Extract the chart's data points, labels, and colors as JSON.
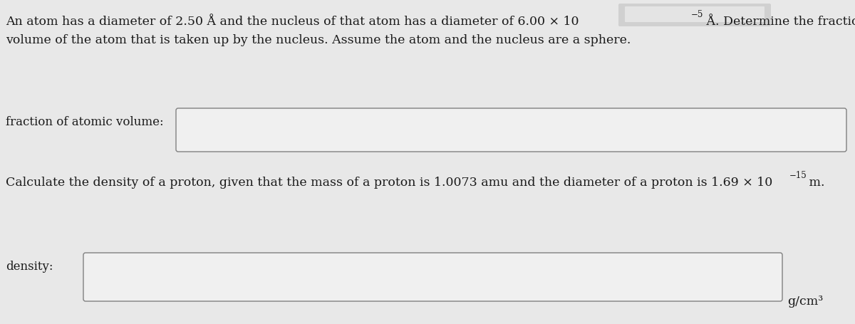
{
  "bg_color": "#e8e8e8",
  "box_color": "#f0f0f0",
  "text_color": "#1a1a1a",
  "label1": "fraction of atomic volume:",
  "label2": "density:",
  "unit": "g/cm³",
  "fontsize_main": 12.5,
  "fontsize_label": 12.0,
  "fontsize_sup": 8.5,
  "redact_color": "#d0d0d0",
  "redact_inner": "#e4e4e4",
  "line1_main": "An atom has a diameter of 2.50 Å and the nucleus of that atom has a diameter of 6.00 × 10",
  "line1_sup": "−5",
  "line1_end": " Å. Determine the fraction of the",
  "line2": "volume of the atom that is taken up by the nucleus. Assume the atom and the nucleus are a sphere.",
  "line3_main": "Calculate the density of a proton, given that the mass of a proton is 1.0073 amu and the diameter of a proton is 1.69 × 10",
  "line3_sup": "−15",
  "line3_end": " m."
}
